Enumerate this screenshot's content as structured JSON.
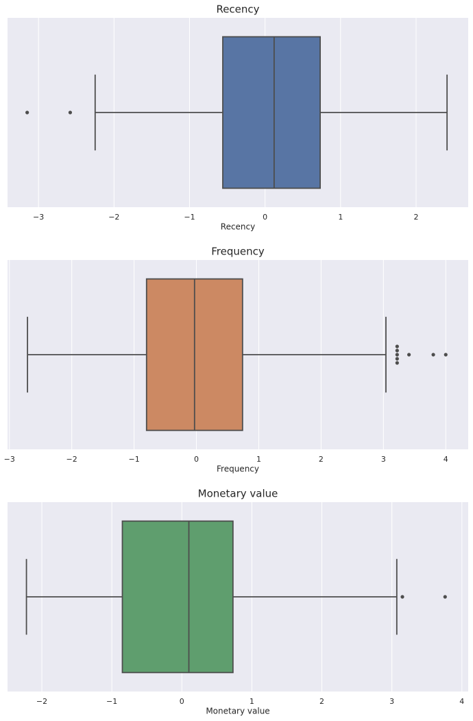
{
  "chart_data": [
    {
      "type": "box",
      "title": "Recency",
      "xlabel": "Recency",
      "color": "#5875a4",
      "whislo": -2.25,
      "q1": -0.56,
      "median": 0.12,
      "q3": 0.73,
      "whishi": 2.41,
      "fliers": [
        -3.15,
        -2.58
      ],
      "xlim": [
        -3.41,
        2.69
      ],
      "xticks": [
        {
          "value": -3,
          "label": "−3"
        },
        {
          "value": -2,
          "label": "−2"
        },
        {
          "value": -1,
          "label": "−1"
        },
        0,
        1,
        2
      ],
      "grid": true
    },
    {
      "type": "box",
      "title": "Frequency",
      "xlabel": "Frequency",
      "color": "#cc8963",
      "whislo": -2.71,
      "q1": -0.8,
      "median": -0.03,
      "q3": 0.74,
      "whishi": 3.04,
      "fliers": [
        3.22,
        3.22,
        3.22,
        3.22,
        3.22,
        3.41,
        3.8,
        4.0
      ],
      "xlim": [
        -3.03,
        4.36
      ],
      "xticks": [
        {
          "value": -3,
          "label": "−3"
        },
        {
          "value": -2,
          "label": "−2"
        },
        {
          "value": -1,
          "label": "−1"
        },
        0,
        1,
        2,
        3,
        4
      ],
      "grid": true
    },
    {
      "type": "box",
      "title": "Monetary value",
      "xlabel": "Monetary value",
      "color": "#5f9e6e",
      "whislo": -2.22,
      "q1": -0.85,
      "median": 0.1,
      "q3": 0.73,
      "whishi": 3.07,
      "fliers": [
        3.15,
        3.76
      ],
      "xlim": [
        -2.49,
        4.09
      ],
      "xticks": [
        {
          "value": -2,
          "label": "−2"
        },
        {
          "value": -1,
          "label": "−1"
        },
        0,
        1,
        2,
        3,
        4
      ],
      "grid": true
    }
  ]
}
